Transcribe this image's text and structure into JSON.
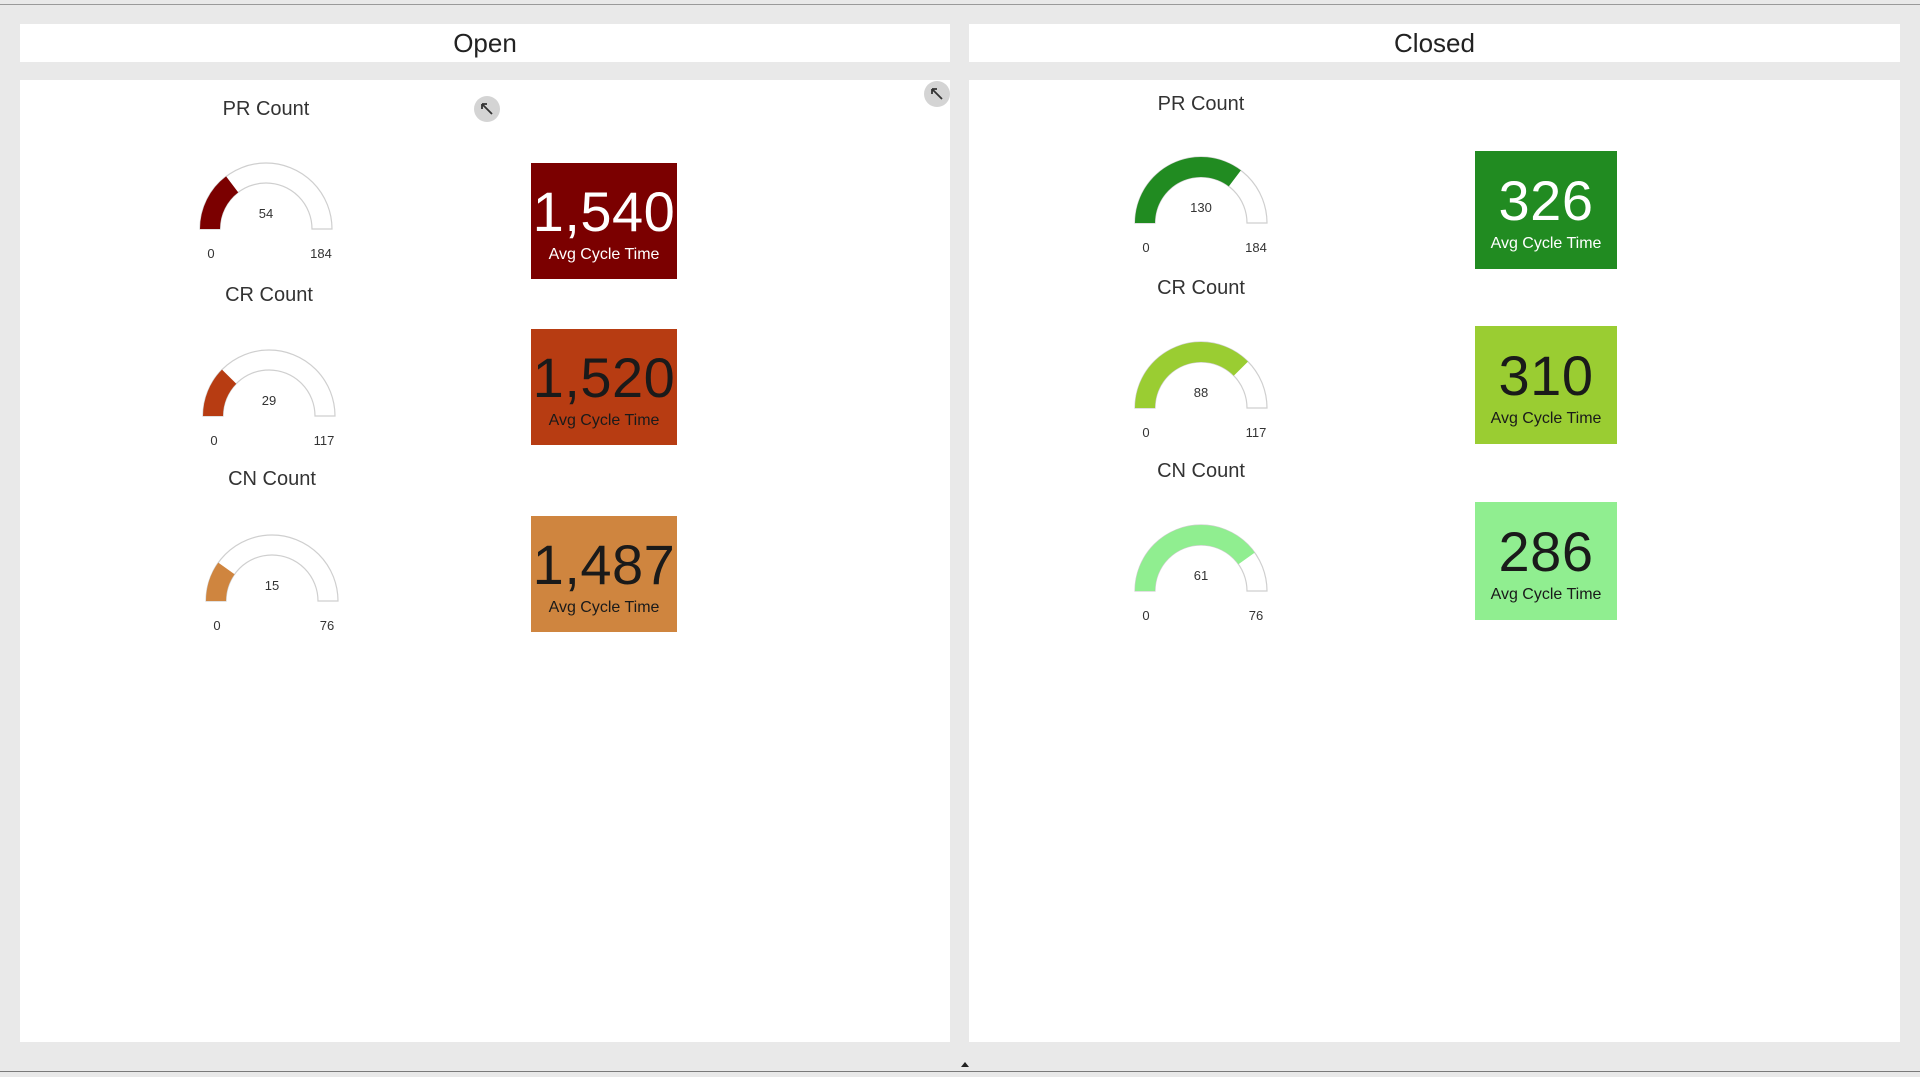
{
  "panels": {
    "open": {
      "header": "Open",
      "gauges": [
        {
          "title": "PR  Count",
          "value": 54,
          "min": 0,
          "max": 184,
          "value_text": "54",
          "min_text": "0",
          "max_text": "184",
          "color": "#7b0000"
        },
        {
          "title": "CR Count",
          "value": 29,
          "min": 0,
          "max": 117,
          "value_text": "29",
          "min_text": "0",
          "max_text": "117",
          "color": "#b73c12"
        },
        {
          "title": "CN Count",
          "value": 15,
          "min": 0,
          "max": 76,
          "value_text": "15",
          "min_text": "0",
          "max_text": "76",
          "color": "#cf853f"
        }
      ],
      "tiles": [
        {
          "value": "1,540",
          "caption": "Avg Cycle Time",
          "color": "#7b0000",
          "text_color": "#ffffff"
        },
        {
          "value": "1,520",
          "caption": "Avg Cycle Time",
          "color": "#b73c12",
          "text_color": "#1a1a1a"
        },
        {
          "value": "1,487",
          "caption": "Avg Cycle Time",
          "color": "#cf853f",
          "text_color": "#1a1a1a"
        }
      ]
    },
    "closed": {
      "header": "Closed",
      "gauges": [
        {
          "title": "PR  Count",
          "value": 130,
          "min": 0,
          "max": 184,
          "value_text": "130",
          "min_text": "0",
          "max_text": "184",
          "color": "#218b21"
        },
        {
          "title": "CR Count",
          "value": 88,
          "min": 0,
          "max": 117,
          "value_text": "88",
          "min_text": "0",
          "max_text": "117",
          "color": "#9acd32"
        },
        {
          "title": "CN Count",
          "value": 61,
          "min": 0,
          "max": 76,
          "value_text": "61",
          "min_text": "0",
          "max_text": "76",
          "color": "#90ee90"
        }
      ],
      "tiles": [
        {
          "value": "326",
          "caption": "Avg Cycle Time",
          "color": "#218b21",
          "text_color": "#ffffff"
        },
        {
          "value": "310",
          "caption": "Avg Cycle Time",
          "color": "#9acd32",
          "text_color": "#1a1a1a"
        },
        {
          "value": "286",
          "caption": "Avg Cycle Time",
          "color": "#90ee90",
          "text_color": "#1a1a1a"
        }
      ]
    }
  },
  "icons": {
    "expand": "expand-icon",
    "collapse": "caret-up-icon"
  }
}
